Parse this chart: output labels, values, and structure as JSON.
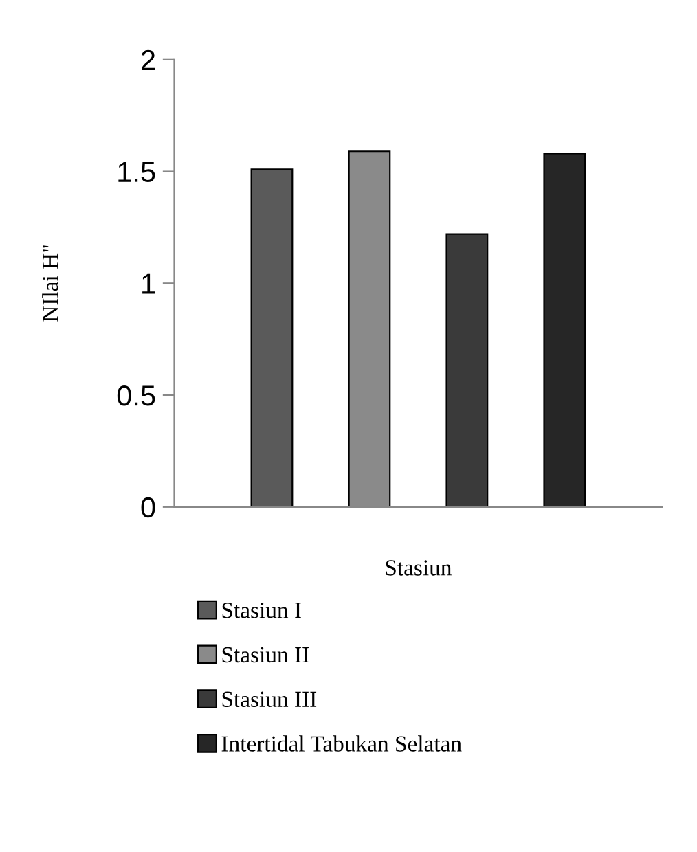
{
  "chart_data": {
    "type": "bar",
    "categories": [
      null
    ],
    "series": [
      {
        "name": "Stasiun I",
        "color": "#5a5a5a",
        "values": [
          1.51
        ]
      },
      {
        "name": "Stasiun II",
        "color": "#8a8a8a",
        "values": [
          1.59
        ]
      },
      {
        "name": "Stasiun III",
        "color": "#3a3a3a",
        "values": [
          1.22
        ]
      },
      {
        "name": "Intertidal Tabukan Selatan",
        "color": "#262626",
        "values": [
          1.58
        ]
      }
    ],
    "xlabel": "Stasiun",
    "ylabel": "NIlai H''",
    "ylim": [
      0,
      2
    ],
    "yticks": [
      0,
      0.5,
      1,
      1.5,
      2
    ],
    "grid": false,
    "legend": "bottom"
  }
}
